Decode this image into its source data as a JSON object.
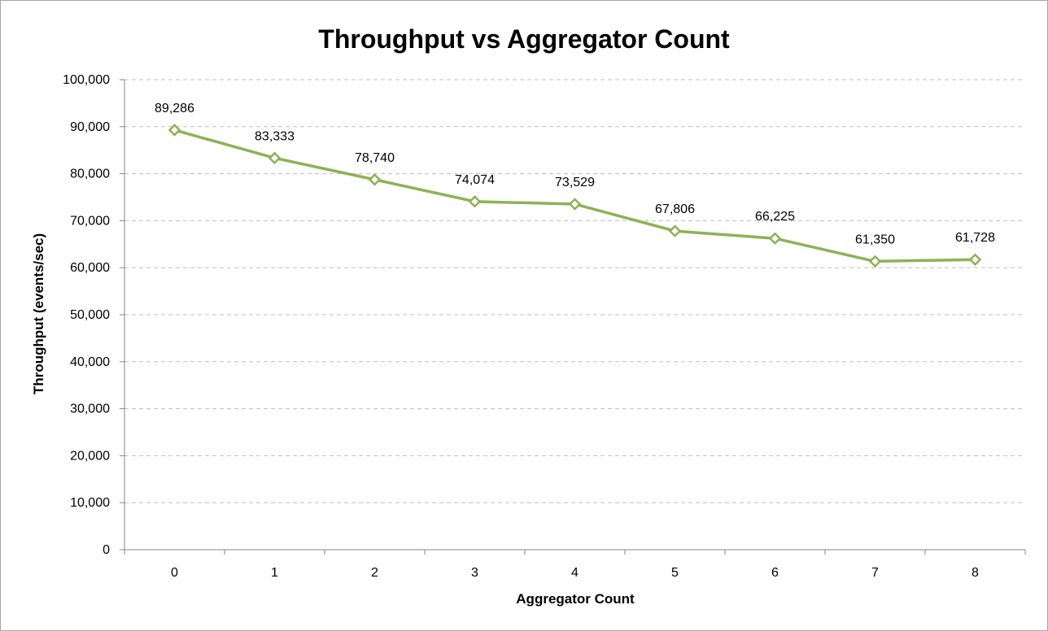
{
  "chart_data": {
    "type": "line",
    "title": "Throughput vs Aggregator Count",
    "xlabel": "Aggregator Count",
    "ylabel": "Throughput (events/sec)",
    "categories": [
      "0",
      "1",
      "2",
      "3",
      "4",
      "5",
      "6",
      "7",
      "8"
    ],
    "series": [
      {
        "values": [
          89286,
          83333,
          78740,
          74074,
          73529,
          67806,
          66225,
          61350,
          61728
        ],
        "data_labels": [
          "89,286",
          "83,333",
          "78,740",
          "74,074",
          "73,529",
          "67,806",
          "66,225",
          "61,350",
          "61,728"
        ],
        "color": "#8db255",
        "marker": "diamond-open"
      }
    ],
    "ylim": [
      0,
      100000
    ],
    "y_ticks": [
      0,
      10000,
      20000,
      30000,
      40000,
      50000,
      60000,
      70000,
      80000,
      90000,
      100000
    ],
    "y_tick_labels": [
      "0",
      "10,000",
      "20,000",
      "30,000",
      "40,000",
      "50,000",
      "60,000",
      "70,000",
      "80,000",
      "90,000",
      "100,000"
    ],
    "grid": "horizontal-dashed",
    "legend": "none"
  }
}
